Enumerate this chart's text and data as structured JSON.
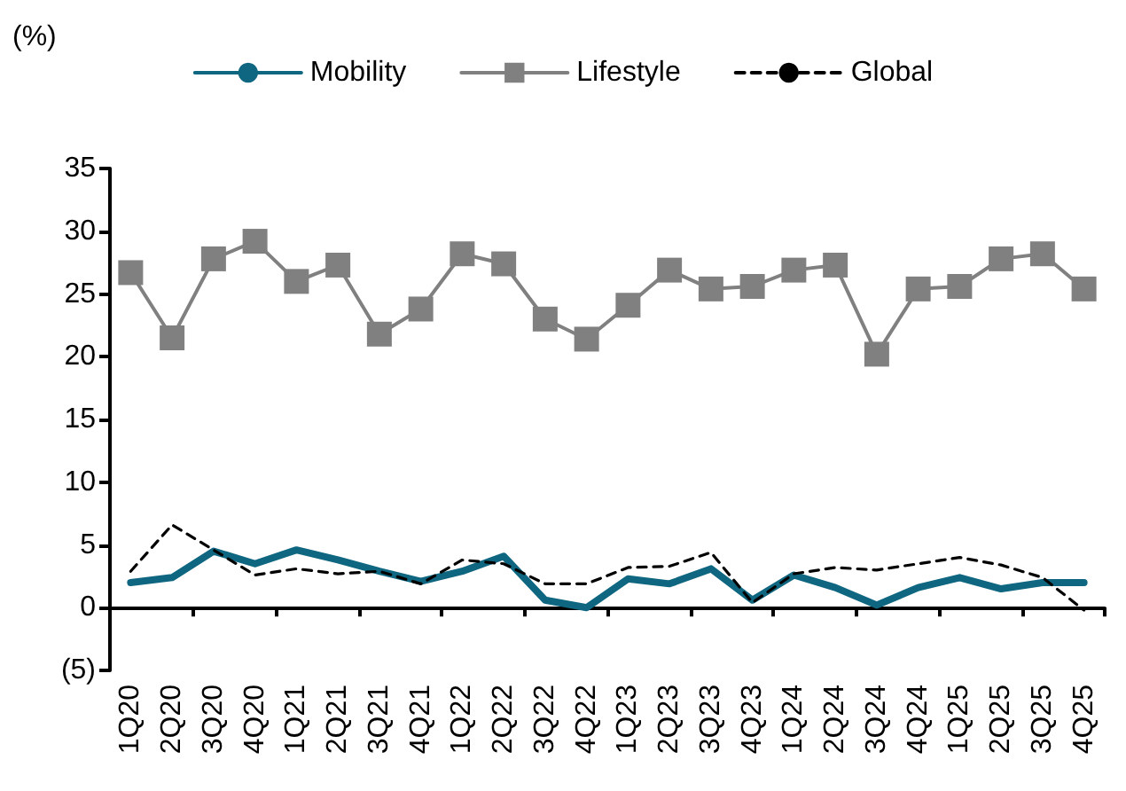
{
  "chart_data": {
    "type": "line",
    "ylabel": "(%)",
    "categories": [
      "1Q20",
      "2Q20",
      "3Q20",
      "4Q20",
      "1Q21",
      "2Q21",
      "3Q21",
      "4Q21",
      "1Q22",
      "2Q22",
      "3Q22",
      "4Q22",
      "1Q23",
      "2Q23",
      "3Q23",
      "4Q23",
      "1Q24",
      "2Q24",
      "3Q24",
      "4Q24",
      "1Q25",
      "2Q25",
      "3Q25",
      "4Q25"
    ],
    "series": [
      {
        "name": "Mobility",
        "color": "#0e6680",
        "marker": "none",
        "line_style": "solid",
        "values": [
          2.0,
          2.4,
          4.5,
          3.5,
          4.6,
          3.8,
          2.9,
          2.1,
          2.9,
          4.1,
          0.6,
          0.0,
          2.3,
          1.9,
          3.1,
          0.6,
          2.6,
          1.6,
          0.2,
          1.6,
          2.4,
          1.5,
          2.0,
          2.0
        ]
      },
      {
        "name": "Lifestyle",
        "color": "#808080",
        "marker": "square",
        "line_style": "solid",
        "values": [
          26.7,
          21.5,
          27.8,
          29.2,
          26.0,
          27.3,
          21.8,
          23.8,
          28.2,
          27.4,
          23.0,
          21.4,
          24.1,
          26.9,
          25.4,
          25.6,
          26.9,
          27.3,
          20.2,
          25.4,
          25.6,
          27.8,
          28.2,
          25.4
        ]
      },
      {
        "name": "Global",
        "color": "#000000",
        "marker": "none",
        "line_style": "dashed",
        "values": [
          2.9,
          6.6,
          4.6,
          2.6,
          3.1,
          2.7,
          2.9,
          1.9,
          3.8,
          3.5,
          1.9,
          1.9,
          3.2,
          3.3,
          4.4,
          0.4,
          2.7,
          3.2,
          3.0,
          3.5,
          4.0,
          3.4,
          2.4,
          -0.2
        ]
      }
    ],
    "ylim": [
      -5,
      35
    ],
    "yticks": [
      {
        "value": -5,
        "label": "(5)"
      },
      0,
      5,
      10,
      15,
      20,
      25,
      30,
      35
    ],
    "legend": "top"
  }
}
